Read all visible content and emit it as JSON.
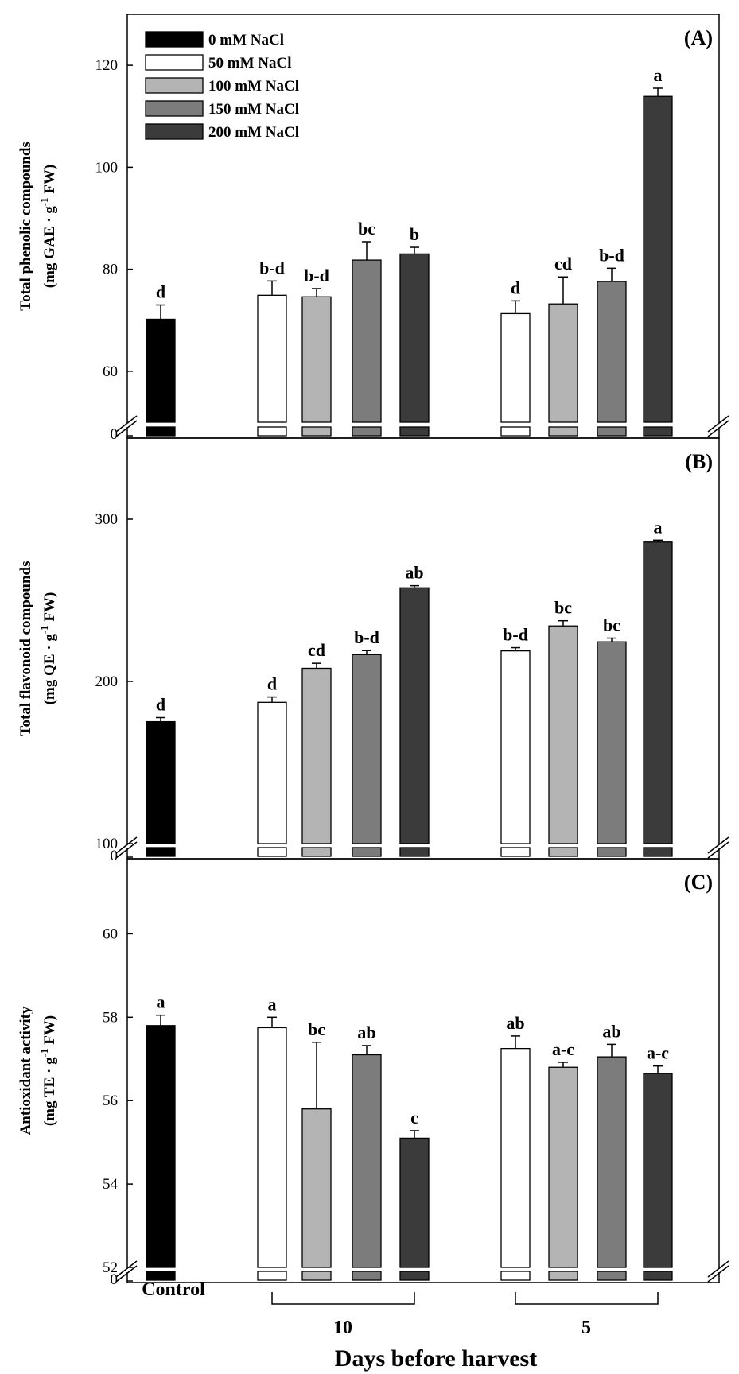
{
  "figure": {
    "xlabel": "Days before harvest",
    "control_label": "Control",
    "group_labels": [
      "10",
      "5"
    ]
  },
  "legend": {
    "items": [
      {
        "label": "0 mM NaCl",
        "color": "#000000"
      },
      {
        "label": "50 mM NaCl",
        "color": "#ffffff"
      },
      {
        "label": "100 mM NaCl",
        "color": "#b4b4b4"
      },
      {
        "label": "150 mM NaCl",
        "color": "#7c7c7c"
      },
      {
        "label": "200 mM NaCl",
        "color": "#3b3b3b"
      }
    ]
  },
  "chart_data": [
    {
      "type": "bar",
      "panel_label": "(A)",
      "ylabel_line1": "Total phenolic compounds",
      "ylabel_line2_prefix": "(mg GAE · g",
      "ylabel_sup": "-1",
      "ylabel_line2_suffix": " FW)",
      "ylim": [
        50,
        130
      ],
      "yticks": [
        60,
        80,
        100,
        120
      ],
      "axis_break_label": "0",
      "categories": [
        "Control",
        "10 days / 50 mM",
        "10 days / 100 mM",
        "10 days / 150 mM",
        "10 days / 200 mM",
        "5 days / 50 mM",
        "5 days / 100 mM",
        "5 days / 150 mM",
        "5 days / 200 mM"
      ],
      "values": [
        70.2,
        74.9,
        74.6,
        81.8,
        83.0,
        71.3,
        73.2,
        77.6,
        113.9
      ],
      "errors": [
        2.8,
        2.8,
        1.6,
        3.6,
        1.3,
        2.5,
        5.3,
        2.6,
        1.6
      ],
      "letters": [
        "d",
        "b-d",
        "b-d",
        "bc",
        "b",
        "d",
        "cd",
        "b-d",
        "a"
      ]
    },
    {
      "type": "bar",
      "panel_label": "(B)",
      "ylabel_line1": "Total flavonoid compounds",
      "ylabel_line2_prefix": "(mg QE · g",
      "ylabel_sup": "-1",
      "ylabel_line2_suffix": " FW)",
      "ylim": [
        100,
        350
      ],
      "yticks": [
        100,
        200,
        300
      ],
      "axis_break_label": "0",
      "categories": [
        "Control",
        "10 days / 50 mM",
        "10 days / 100 mM",
        "10 days / 150 mM",
        "10 days / 200 mM",
        "5 days / 50 mM",
        "5 days / 100 mM",
        "5 days / 150 mM",
        "5 days / 200 mM"
      ],
      "values": [
        175.2,
        187.1,
        208.1,
        216.5,
        257.7,
        218.8,
        234.2,
        224.4,
        285.9
      ],
      "errors": [
        2.5,
        3.3,
        3.1,
        2.5,
        1.3,
        2.0,
        3.2,
        2.3,
        1.2
      ],
      "letters": [
        "d",
        "d",
        "cd",
        "b-d",
        "ab",
        "b-d",
        "bc",
        "bc",
        "a"
      ]
    },
    {
      "type": "bar",
      "panel_label": "(C)",
      "ylabel_line1": "Antioxidant activity",
      "ylabel_line2_prefix": "(mg TE · g",
      "ylabel_sup": "-1",
      "ylabel_line2_suffix": " FW)",
      "ylim": [
        52,
        61.8
      ],
      "yticks": [
        52,
        54,
        56,
        58,
        60
      ],
      "axis_break_label": "0",
      "categories": [
        "Control",
        "10 days / 50 mM",
        "10 days / 100 mM",
        "10 days / 150 mM",
        "10 days / 200 mM",
        "5 days / 50 mM",
        "5 days / 100 mM",
        "5 days / 150 mM",
        "5 days / 200 mM"
      ],
      "values": [
        57.8,
        57.75,
        55.8,
        57.1,
        55.1,
        57.25,
        56.8,
        57.05,
        56.65
      ],
      "errors": [
        0.25,
        0.25,
        1.6,
        0.22,
        0.18,
        0.3,
        0.12,
        0.3,
        0.18
      ],
      "letters": [
        "a",
        "a",
        "bc",
        "ab",
        "c",
        "ab",
        "a-c",
        "ab",
        "a-c"
      ]
    }
  ]
}
